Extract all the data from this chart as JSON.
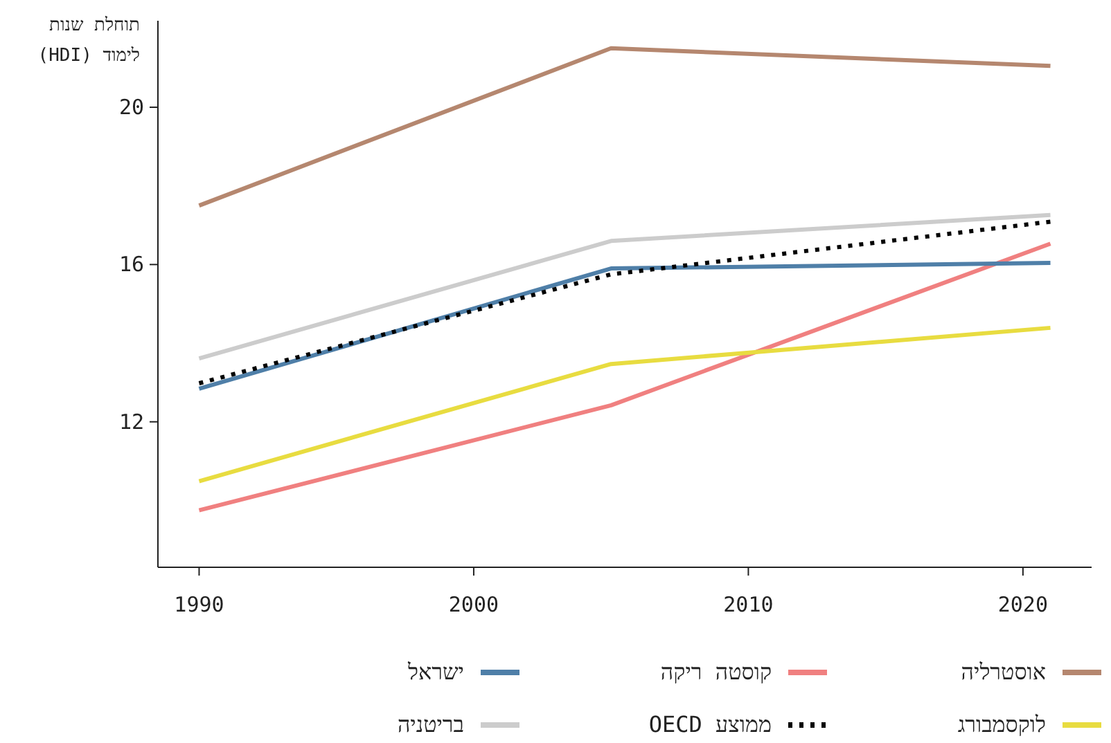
{
  "chart_data": {
    "type": "line",
    "ylabel": "תוחלת שנות לימוד (HDI)",
    "x": [
      1990,
      2005,
      2021
    ],
    "xlim": [
      1988.5,
      2022.5
    ],
    "xticks": [
      1990,
      2000,
      2010,
      2020
    ],
    "ylim": [
      8.3,
      22.2
    ],
    "yticks": [
      12,
      16,
      20
    ],
    "grid": false,
    "legend": "bottom",
    "line_style": "solid",
    "marker": "none",
    "series": [
      {
        "name": "אוסטרליה",
        "color": "#b5876f",
        "values": [
          17.5,
          21.5,
          21.05
        ]
      },
      {
        "name": "קוסטה ריקה",
        "color": "#f08080",
        "values": [
          9.75,
          12.42,
          16.53
        ]
      },
      {
        "name": "ישראל",
        "color": "#4f7fa8",
        "values": [
          12.84,
          15.9,
          16.04
        ]
      },
      {
        "name": "לוקסמבורג",
        "color": "#e8dc40",
        "values": [
          10.49,
          13.47,
          14.39
        ]
      },
      {
        "name": "ממוצע OECD",
        "color": "#000000",
        "line_style": "dotted",
        "values": [
          12.98,
          15.75,
          17.09
        ]
      },
      {
        "name": "בריטניה",
        "color": "#cccccc",
        "values": [
          13.61,
          16.6,
          17.26
        ]
      }
    ]
  }
}
